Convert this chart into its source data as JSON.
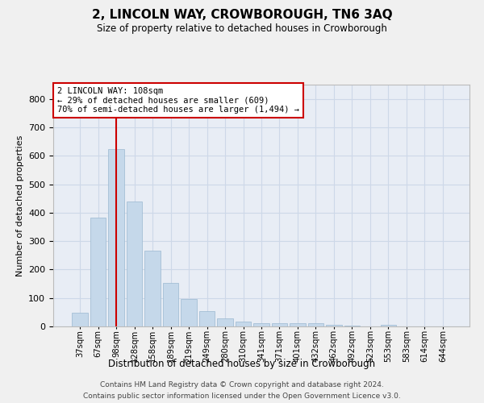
{
  "title": "2, LINCOLN WAY, CROWBOROUGH, TN6 3AQ",
  "subtitle": "Size of property relative to detached houses in Crowborough",
  "xlabel": "Distribution of detached houses by size in Crowborough",
  "ylabel": "Number of detached properties",
  "categories": [
    "37sqm",
    "67sqm",
    "98sqm",
    "128sqm",
    "158sqm",
    "189sqm",
    "219sqm",
    "249sqm",
    "280sqm",
    "310sqm",
    "341sqm",
    "371sqm",
    "401sqm",
    "432sqm",
    "462sqm",
    "492sqm",
    "523sqm",
    "553sqm",
    "583sqm",
    "614sqm",
    "644sqm"
  ],
  "values": [
    47,
    383,
    622,
    440,
    265,
    152,
    95,
    55,
    28,
    17,
    10,
    10,
    10,
    12,
    5,
    2,
    0,
    7,
    0,
    1,
    1
  ],
  "bar_color": "#c5d8ea",
  "bar_edge_color": "#9ab8d0",
  "grid_color": "#cdd8e8",
  "background_color": "#e8edf5",
  "fig_background": "#f0f0f0",
  "vline_x_index": 2,
  "vline_color": "#cc0000",
  "annotation_text": "2 LINCOLN WAY: 108sqm\n← 29% of detached houses are smaller (609)\n70% of semi-detached houses are larger (1,494) →",
  "annotation_box_facecolor": "#ffffff",
  "annotation_box_edgecolor": "#cc0000",
  "ylim": [
    0,
    850
  ],
  "yticks": [
    0,
    100,
    200,
    300,
    400,
    500,
    600,
    700,
    800
  ],
  "footer_line1": "Contains HM Land Registry data © Crown copyright and database right 2024.",
  "footer_line2": "Contains public sector information licensed under the Open Government Licence v3.0."
}
